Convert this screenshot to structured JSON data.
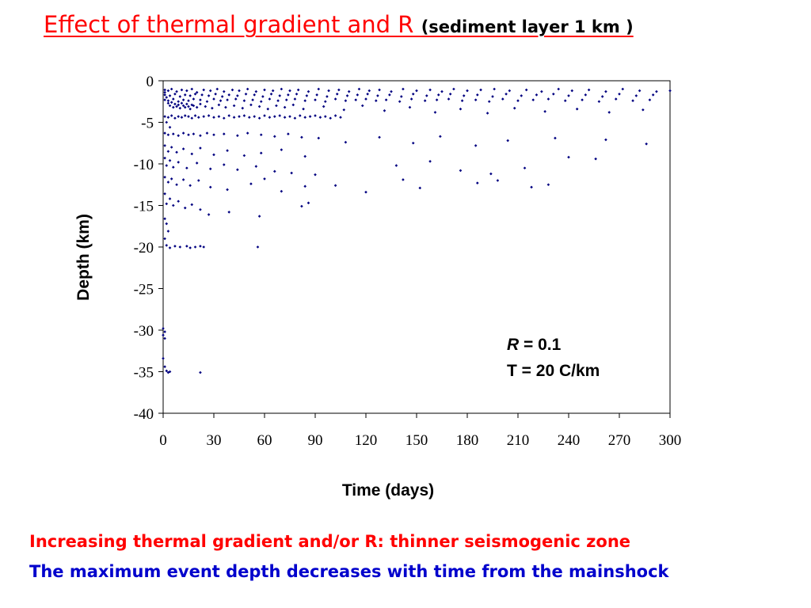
{
  "title": {
    "main": "Effect of thermal gradient and R",
    "sub": "(sediment layer 1 km )"
  },
  "colors": {
    "title": "#ff0000",
    "points": "#000080",
    "note_red": "#ff0000",
    "note_blue": "#0000cc"
  },
  "chart_data": {
    "type": "scatter",
    "xlabel": "Time (days)",
    "ylabel": "Depth (km)",
    "xlim": [
      0,
      300
    ],
    "ylim": [
      -40,
      0
    ],
    "x_ticks": [
      "0",
      "30",
      "60",
      "90",
      "120",
      "150",
      "180",
      "210",
      "240",
      "270",
      "300"
    ],
    "y_ticks": [
      "0",
      "-5",
      "-10",
      "-15",
      "-20",
      "-25",
      "-30",
      "-35",
      "-40"
    ],
    "grid": false,
    "legend": false,
    "annotation": {
      "r_label": "R",
      "r_value": " = 0.1",
      "t_line": "T = 20  C/km"
    },
    "points": [
      [
        1,
        -1.1
      ],
      [
        3,
        -1.2
      ],
      [
        5,
        -1.0
      ],
      [
        8,
        -1.3
      ],
      [
        11,
        -1.1
      ],
      [
        14,
        -1.2
      ],
      [
        17,
        -1.0
      ],
      [
        20,
        -1.4
      ],
      [
        24,
        -1.1
      ],
      [
        28,
        -1.2
      ],
      [
        32,
        -1.0
      ],
      [
        36,
        -1.3
      ],
      [
        41,
        -1.1
      ],
      [
        45,
        -1.2
      ],
      [
        50,
        -1.0
      ],
      [
        55,
        -1.3
      ],
      [
        60,
        -1.1
      ],
      [
        65,
        -1.2
      ],
      [
        70,
        -1.0
      ],
      [
        75,
        -1.2
      ],
      [
        80,
        -1.1
      ],
      [
        86,
        -1.3
      ],
      [
        92,
        -1.0
      ],
      [
        98,
        -1.2
      ],
      [
        104,
        -1.1
      ],
      [
        110,
        -1.3
      ],
      [
        116,
        -1.0
      ],
      [
        122,
        -1.2
      ],
      [
        128,
        -1.1
      ],
      [
        135,
        -1.3
      ],
      [
        142,
        -1.0
      ],
      [
        150,
        -1.2
      ],
      [
        158,
        -1.1
      ],
      [
        165,
        -1.3
      ],
      [
        172,
        -1.0
      ],
      [
        180,
        -1.2
      ],
      [
        188,
        -1.1
      ],
      [
        196,
        -1.0
      ],
      [
        205,
        -1.2
      ],
      [
        215,
        -1.1
      ],
      [
        224,
        -1.3
      ],
      [
        234,
        -1.0
      ],
      [
        242,
        -1.2
      ],
      [
        252,
        -1.1
      ],
      [
        262,
        -1.3
      ],
      [
        272,
        -1.0
      ],
      [
        282,
        -1.2
      ],
      [
        292,
        -1.3
      ],
      [
        300,
        -1.2
      ],
      [
        1,
        -1.7
      ],
      [
        4,
        -1.8
      ],
      [
        7,
        -1.6
      ],
      [
        10,
        -1.9
      ],
      [
        13,
        -1.7
      ],
      [
        16,
        -1.8
      ],
      [
        19,
        -1.6
      ],
      [
        23,
        -1.7
      ],
      [
        27,
        -1.8
      ],
      [
        31,
        -1.6
      ],
      [
        35,
        -1.9
      ],
      [
        39,
        -1.7
      ],
      [
        44,
        -1.8
      ],
      [
        49,
        -1.6
      ],
      [
        54,
        -1.7
      ],
      [
        59,
        -1.9
      ],
      [
        64,
        -1.6
      ],
      [
        69,
        -1.8
      ],
      [
        74,
        -1.7
      ],
      [
        79,
        -1.6
      ],
      [
        85,
        -1.8
      ],
      [
        91,
        -1.7
      ],
      [
        97,
        -1.9
      ],
      [
        103,
        -1.6
      ],
      [
        109,
        -1.8
      ],
      [
        115,
        -1.7
      ],
      [
        121,
        -1.6
      ],
      [
        127,
        -1.8
      ],
      [
        134,
        -1.7
      ],
      [
        141,
        -1.9
      ],
      [
        148,
        -1.6
      ],
      [
        156,
        -1.8
      ],
      [
        163,
        -1.7
      ],
      [
        170,
        -1.6
      ],
      [
        178,
        -1.8
      ],
      [
        186,
        -1.7
      ],
      [
        195,
        -1.9
      ],
      [
        203,
        -1.6
      ],
      [
        212,
        -1.8
      ],
      [
        221,
        -1.7
      ],
      [
        231,
        -1.6
      ],
      [
        240,
        -1.8
      ],
      [
        250,
        -1.7
      ],
      [
        260,
        -1.9
      ],
      [
        270,
        -1.6
      ],
      [
        280,
        -1.8
      ],
      [
        290,
        -1.7
      ],
      [
        1,
        -2.3
      ],
      [
        3,
        -2.4
      ],
      [
        6,
        -2.2
      ],
      [
        9,
        -2.5
      ],
      [
        12,
        -2.3
      ],
      [
        15,
        -2.4
      ],
      [
        18,
        -2.2
      ],
      [
        22,
        -2.3
      ],
      [
        26,
        -2.5
      ],
      [
        30,
        -2.2
      ],
      [
        34,
        -2.4
      ],
      [
        38,
        -2.3
      ],
      [
        43,
        -2.2
      ],
      [
        48,
        -2.4
      ],
      [
        53,
        -2.3
      ],
      [
        58,
        -2.5
      ],
      [
        63,
        -2.2
      ],
      [
        68,
        -2.4
      ],
      [
        73,
        -2.3
      ],
      [
        78,
        -2.2
      ],
      [
        84,
        -2.4
      ],
      [
        90,
        -2.3
      ],
      [
        96,
        -2.5
      ],
      [
        102,
        -2.2
      ],
      [
        108,
        -2.4
      ],
      [
        114,
        -2.3
      ],
      [
        120,
        -2.2
      ],
      [
        126,
        -2.4
      ],
      [
        132,
        -2.3
      ],
      [
        140,
        -2.5
      ],
      [
        147,
        -2.2
      ],
      [
        155,
        -2.4
      ],
      [
        162,
        -2.3
      ],
      [
        169,
        -2.2
      ],
      [
        177,
        -2.4
      ],
      [
        185,
        -2.3
      ],
      [
        193,
        -2.5
      ],
      [
        201,
        -2.2
      ],
      [
        210,
        -2.4
      ],
      [
        219,
        -2.3
      ],
      [
        228,
        -2.2
      ],
      [
        238,
        -2.4
      ],
      [
        248,
        -2.3
      ],
      [
        258,
        -2.5
      ],
      [
        268,
        -2.2
      ],
      [
        278,
        -2.4
      ],
      [
        288,
        -2.3
      ],
      [
        1,
        -1.4
      ],
      [
        2,
        -2.0
      ],
      [
        3,
        -2.7
      ],
      [
        4,
        -3.0
      ],
      [
        5,
        -2.6
      ],
      [
        6,
        -3.2
      ],
      [
        7,
        -2.8
      ],
      [
        8,
        -3.1
      ],
      [
        9,
        -2.9
      ],
      [
        10,
        -3.3
      ],
      [
        11,
        -2.7
      ],
      [
        12,
        -3.0
      ],
      [
        13,
        -3.2
      ],
      [
        14,
        -2.8
      ],
      [
        15,
        -3.1
      ],
      [
        16,
        -3.4
      ],
      [
        17,
        -2.9
      ],
      [
        18,
        -3.0
      ],
      [
        20,
        -3.2
      ],
      [
        22,
        -2.8
      ],
      [
        25,
        -3.1
      ],
      [
        29,
        -3.3
      ],
      [
        33,
        -2.9
      ],
      [
        37,
        -3.2
      ],
      [
        42,
        -3.0
      ],
      [
        47,
        -3.3
      ],
      [
        52,
        -2.9
      ],
      [
        57,
        -3.1
      ],
      [
        62,
        -3.4
      ],
      [
        67,
        -3.0
      ],
      [
        72,
        -3.2
      ],
      [
        77,
        -2.9
      ],
      [
        83,
        -3.4
      ],
      [
        95,
        -3.1
      ],
      [
        107,
        -3.5
      ],
      [
        118,
        -3.0
      ],
      [
        131,
        -3.6
      ],
      [
        146,
        -3.2
      ],
      [
        161,
        -3.8
      ],
      [
        176,
        -3.4
      ],
      [
        192,
        -3.9
      ],
      [
        208,
        -3.3
      ],
      [
        226,
        -3.7
      ],
      [
        245,
        -3.4
      ],
      [
        264,
        -3.8
      ],
      [
        284,
        -3.5
      ],
      [
        1,
        -4.3
      ],
      [
        3,
        -4.4
      ],
      [
        5,
        -4.2
      ],
      [
        7,
        -4.5
      ],
      [
        9,
        -4.3
      ],
      [
        11,
        -4.4
      ],
      [
        13,
        -4.2
      ],
      [
        15,
        -4.3
      ],
      [
        17,
        -4.5
      ],
      [
        19,
        -4.2
      ],
      [
        21,
        -4.4
      ],
      [
        24,
        -4.3
      ],
      [
        27,
        -4.2
      ],
      [
        30,
        -4.4
      ],
      [
        33,
        -4.3
      ],
      [
        36,
        -4.5
      ],
      [
        39,
        -4.2
      ],
      [
        42,
        -4.4
      ],
      [
        45,
        -4.3
      ],
      [
        48,
        -4.2
      ],
      [
        51,
        -4.4
      ],
      [
        54,
        -4.3
      ],
      [
        57,
        -4.5
      ],
      [
        60,
        -4.2
      ],
      [
        63,
        -4.4
      ],
      [
        66,
        -4.3
      ],
      [
        69,
        -4.2
      ],
      [
        72,
        -4.4
      ],
      [
        75,
        -4.3
      ],
      [
        78,
        -4.5
      ],
      [
        81,
        -4.2
      ],
      [
        84,
        -4.4
      ],
      [
        87,
        -4.3
      ],
      [
        90,
        -4.2
      ],
      [
        93,
        -4.4
      ],
      [
        96,
        -4.3
      ],
      [
        99,
        -4.5
      ],
      [
        102,
        -4.2
      ],
      [
        105,
        -4.4
      ],
      [
        2,
        -5.0
      ],
      [
        4,
        -5.6
      ],
      [
        1,
        -6.3
      ],
      [
        3,
        -6.5
      ],
      [
        6,
        -6.4
      ],
      [
        9,
        -6.6
      ],
      [
        12,
        -6.3
      ],
      [
        15,
        -6.5
      ],
      [
        18,
        -6.4
      ],
      [
        22,
        -6.6
      ],
      [
        26,
        -6.3
      ],
      [
        30,
        -6.5
      ],
      [
        36,
        -6.4
      ],
      [
        44,
        -6.6
      ],
      [
        50,
        -6.3
      ],
      [
        58,
        -6.5
      ],
      [
        66,
        -6.7
      ],
      [
        74,
        -6.4
      ],
      [
        82,
        -6.8
      ],
      [
        92,
        -6.9
      ],
      [
        108,
        -7.4
      ],
      [
        128,
        -6.8
      ],
      [
        148,
        -7.5
      ],
      [
        164,
        -6.7
      ],
      [
        185,
        -7.8
      ],
      [
        204,
        -7.2
      ],
      [
        232,
        -6.9
      ],
      [
        262,
        -7.1
      ],
      [
        286,
        -7.6
      ],
      [
        1,
        -7.8
      ],
      [
        3,
        -8.5
      ],
      [
        5,
        -8.0
      ],
      [
        8,
        -8.6
      ],
      [
        12,
        -8.2
      ],
      [
        17,
        -8.8
      ],
      [
        22,
        -8.1
      ],
      [
        30,
        -8.9
      ],
      [
        38,
        -8.4
      ],
      [
        48,
        -9.0
      ],
      [
        58,
        -8.7
      ],
      [
        70,
        -8.3
      ],
      [
        84,
        -9.1
      ],
      [
        1,
        -9.3
      ],
      [
        2,
        -10.2
      ],
      [
        4,
        -9.6
      ],
      [
        6,
        -10.4
      ],
      [
        9,
        -9.8
      ],
      [
        14,
        -10.5
      ],
      [
        20,
        -9.9
      ],
      [
        28,
        -10.6
      ],
      [
        36,
        -10.1
      ],
      [
        44,
        -10.7
      ],
      [
        55,
        -10.3
      ],
      [
        66,
        -10.9
      ],
      [
        76,
        -11.1
      ],
      [
        90,
        -11.3
      ],
      [
        138,
        -10.2
      ],
      [
        158,
        -9.7
      ],
      [
        176,
        -10.8
      ],
      [
        194,
        -11.2
      ],
      [
        214,
        -10.5
      ],
      [
        240,
        -9.2
      ],
      [
        256,
        -9.4
      ],
      [
        1,
        -11.6
      ],
      [
        3,
        -12.2
      ],
      [
        5,
        -11.8
      ],
      [
        8,
        -12.5
      ],
      [
        12,
        -11.9
      ],
      [
        16,
        -12.6
      ],
      [
        21,
        -12.0
      ],
      [
        28,
        -12.8
      ],
      [
        38,
        -13.1
      ],
      [
        52,
        -12.4
      ],
      [
        60,
        -11.8
      ],
      [
        70,
        -13.3
      ],
      [
        84,
        -12.7
      ],
      [
        102,
        -12.6
      ],
      [
        120,
        -13.4
      ],
      [
        142,
        -11.9
      ],
      [
        152,
        -12.9
      ],
      [
        186,
        -12.3
      ],
      [
        198,
        -12.0
      ],
      [
        218,
        -12.8
      ],
      [
        228,
        -12.5
      ],
      [
        1,
        -13.6
      ],
      [
        2,
        -14.8
      ],
      [
        4,
        -14.2
      ],
      [
        6,
        -15.0
      ],
      [
        9,
        -14.5
      ],
      [
        13,
        -15.3
      ],
      [
        17,
        -14.9
      ],
      [
        22,
        -15.5
      ],
      [
        27,
        -16.1
      ],
      [
        39,
        -15.8
      ],
      [
        57,
        -16.3
      ],
      [
        82,
        -15.1
      ],
      [
        86,
        -14.7
      ],
      [
        1,
        -16.6
      ],
      [
        2,
        -17.2
      ],
      [
        3,
        -18.1
      ],
      [
        1,
        -19.0
      ],
      [
        2,
        -19.8
      ],
      [
        4,
        -20.1
      ],
      [
        7,
        -19.9
      ],
      [
        10,
        -20.0
      ],
      [
        14,
        -19.9
      ],
      [
        16,
        -20.1
      ],
      [
        19,
        -20.0
      ],
      [
        22,
        -19.9
      ],
      [
        24,
        -20.0
      ],
      [
        56,
        -20.0
      ],
      [
        0,
        -29.8
      ],
      [
        1,
        -30.2
      ],
      [
        0,
        -30.6
      ],
      [
        1,
        -31.0
      ],
      [
        0,
        -33.4
      ],
      [
        1,
        -34.4
      ],
      [
        2,
        -34.9
      ],
      [
        3,
        -35.1
      ],
      [
        4,
        -35.0
      ],
      [
        22,
        -35.1
      ]
    ]
  },
  "notes": {
    "line1": "Increasing thermal gradient and/or R:  thinner seismogenic zone",
    "line2": "The maximum event depth decreases with time from the mainshock"
  }
}
